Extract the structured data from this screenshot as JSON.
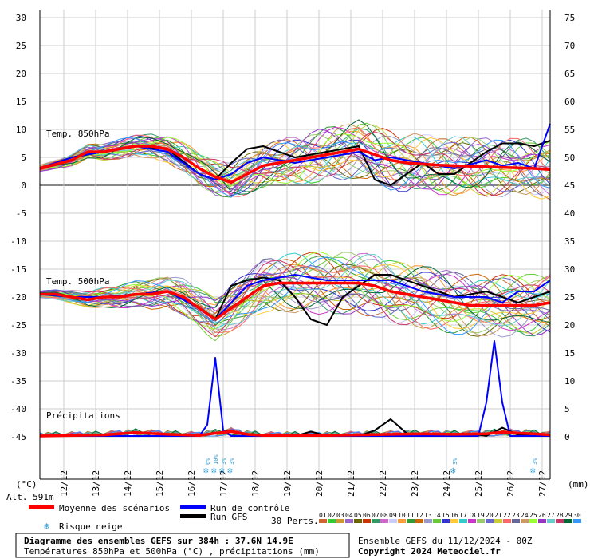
{
  "chart_data": {
    "type": "line",
    "title": "Diagramme des ensembles GEFS sur 384h : 37.6N 14.9E",
    "subtitle": "Températures 850hPa et 500hPa (°C) , précipitations (mm)",
    "run_info": "Ensemble GEFS du 11/12/2024 - 00Z",
    "copyright": "Copyright 2024 Meteociel.fr",
    "altitude_label": "Alt. 591m",
    "left_axis_unit": "(°C)",
    "right_axis_unit": "(mm)",
    "left_ticks": [
      "30",
      "25",
      "20",
      "15",
      "10",
      "5",
      "0",
      "-5",
      "-10",
      "-15",
      "-20",
      "-25",
      "-30",
      "-35",
      "-40",
      "-45"
    ],
    "right_ticks": [
      "75",
      "70",
      "65",
      "60",
      "55",
      "50",
      "45",
      "40",
      "35",
      "30",
      "25",
      "20",
      "15",
      "10",
      "5",
      "0"
    ],
    "date_labels": [
      "12/12",
      "13/12",
      "14/12",
      "15/12",
      "16/12",
      "17/12",
      "18/12",
      "19/12",
      "20/12",
      "21/12",
      "22/12",
      "23/12",
      "24/12",
      "25/12",
      "26/12",
      "27/12"
    ],
    "x_range_hours": [
      0,
      384
    ],
    "section_labels": {
      "t850": "Temp. 850hPa",
      "t500": "Temp. 500hPa",
      "precip": "Précipitations"
    },
    "legend": {
      "mean": "Moyenne des scénarios",
      "control": "Run de contrôle",
      "gfs": "Run GFS",
      "snow": "Risque neige",
      "perts": "30 Perts."
    },
    "colors": {
      "mean": "#ff0000",
      "control": "#0000ff",
      "gfs": "#000000",
      "snow": "#3399cc"
    },
    "member_labels": [
      "01",
      "02",
      "03",
      "04",
      "05",
      "06",
      "07",
      "08",
      "09",
      "10",
      "11",
      "12",
      "13",
      "14",
      "15",
      "16",
      "17",
      "18",
      "19",
      "20",
      "21",
      "22",
      "23",
      "24",
      "25",
      "26",
      "27",
      "28",
      "29",
      "30"
    ],
    "member_colors": [
      "#cc6633",
      "#33cc33",
      "#cc9933",
      "#9966cc",
      "#666600",
      "#cc3300",
      "#339966",
      "#cc66cc",
      "#ccccff",
      "#ff9933",
      "#339933",
      "#cc6600",
      "#9999cc",
      "#66cc33",
      "#3333cc",
      "#ffcc33",
      "#33cccc",
      "#cc33cc",
      "#99cc66",
      "#6666cc",
      "#cccc33",
      "#ff6666",
      "#666699",
      "#cc9966",
      "#99ff33",
      "#9933cc",
      "#66cccc",
      "#cc3366",
      "#006633",
      "#3399ff"
    ],
    "snow_marks": [
      {
        "hour": 126,
        "label": "6%"
      },
      {
        "hour": 132,
        "label": "10%"
      },
      {
        "hour": 138,
        "label": "3%"
      },
      {
        "hour": 144,
        "label": "3%"
      },
      {
        "hour": 312,
        "label": "3%"
      },
      {
        "hour": 372,
        "label": "3%"
      }
    ],
    "series": [
      {
        "name": "Moyenne des scénarios",
        "kind": "t850",
        "x": [
          0,
          24,
          36,
          48,
          60,
          72,
          84,
          96,
          108,
          120,
          132,
          144,
          156,
          168,
          180,
          192,
          204,
          216,
          228,
          240,
          252,
          264,
          276,
          288,
          300,
          312,
          324,
          336,
          348,
          360,
          372,
          384
        ],
        "y": [
          3,
          4.5,
          6,
          6,
          6.5,
          7,
          7,
          6.5,
          5,
          3,
          1.5,
          0.5,
          2,
          3.5,
          4,
          4.5,
          5,
          5.5,
          6,
          6.5,
          5.5,
          4.5,
          4,
          3.8,
          3.6,
          3.5,
          3.4,
          3.3,
          3.2,
          3.1,
          3,
          2.8
        ]
      },
      {
        "name": "Run de contrôle",
        "kind": "t850",
        "x": [
          0,
          24,
          48,
          72,
          96,
          120,
          132,
          144,
          156,
          168,
          192,
          216,
          240,
          252,
          264,
          288,
          312,
          336,
          348,
          360,
          372,
          384
        ],
        "y": [
          3,
          5,
          6,
          7,
          6,
          2,
          1,
          2,
          4,
          5,
          4,
          5,
          6,
          4.5,
          5,
          4,
          3,
          4.5,
          3.5,
          4,
          3,
          11
        ]
      },
      {
        "name": "Run GFS",
        "kind": "t850",
        "x": [
          0,
          24,
          48,
          72,
          96,
          120,
          132,
          144,
          156,
          168,
          192,
          216,
          240,
          252,
          264,
          288,
          300,
          312,
          336,
          348,
          360,
          372,
          384
        ],
        "y": [
          3,
          5,
          6,
          7,
          6.5,
          2,
          1,
          4,
          6.5,
          7,
          5,
          6,
          7,
          1,
          0,
          4,
          2,
          2,
          6,
          7.5,
          7.5,
          7,
          8
        ]
      },
      {
        "name": "Moyenne des scénarios",
        "kind": "t500",
        "x": [
          0,
          12,
          24,
          36,
          48,
          60,
          72,
          84,
          96,
          108,
          120,
          132,
          144,
          156,
          168,
          180,
          192,
          204,
          216,
          228,
          240,
          252,
          264,
          276,
          288,
          300,
          312,
          324,
          336,
          348,
          360,
          372,
          384
        ],
        "y": [
          -19.5,
          -19.5,
          -20,
          -20.5,
          -20,
          -20,
          -19.5,
          -19.5,
          -19,
          -20,
          -22,
          -24,
          -22,
          -20,
          -18,
          -17.5,
          -17.5,
          -17.5,
          -17.5,
          -17.5,
          -17.5,
          -18,
          -19,
          -19.5,
          -20,
          -20.5,
          -21,
          -21.5,
          -21.5,
          -21.5,
          -21.5,
          -21.5,
          -21
        ]
      },
      {
        "name": "Run de contrôle",
        "kind": "t500",
        "x": [
          0,
          24,
          48,
          72,
          96,
          120,
          132,
          144,
          156,
          168,
          192,
          216,
          240,
          264,
          288,
          312,
          336,
          348,
          360,
          372,
          384
        ],
        "y": [
          -19.5,
          -20,
          -20,
          -19.5,
          -19,
          -22,
          -24,
          -21,
          -18,
          -17,
          -16,
          -17,
          -17,
          -17,
          -19,
          -20,
          -20,
          -21,
          -19,
          -19,
          -17
        ]
      },
      {
        "name": "Run GFS",
        "kind": "t500",
        "x": [
          0,
          24,
          48,
          72,
          96,
          120,
          132,
          144,
          156,
          168,
          180,
          192,
          204,
          216,
          228,
          240,
          252,
          264,
          288,
          312,
          336,
          348,
          360,
          372,
          384
        ],
        "y": [
          -19.5,
          -20,
          -20,
          -19.5,
          -19,
          -22,
          -24,
          -18,
          -17,
          -16.5,
          -17,
          -20,
          -24,
          -25,
          -20,
          -18,
          -16,
          -16,
          -18,
          -20,
          -19,
          -20,
          -21,
          -20,
          -19
        ]
      },
      {
        "name": "Moyenne des scénarios",
        "kind": "precip",
        "x": [
          0,
          48,
          72,
          96,
          120,
          132,
          144,
          156,
          168,
          192,
          216,
          240,
          264,
          288,
          312,
          336,
          348,
          360,
          372,
          384
        ],
        "y": [
          0,
          0.2,
          0.6,
          0.3,
          0.1,
          0.5,
          0.8,
          0.3,
          0.1,
          0.1,
          0.1,
          0.2,
          0.3,
          0.4,
          0.3,
          0.4,
          0.7,
          0.5,
          0.4,
          0.2
        ]
      },
      {
        "name": "Run de contrôle",
        "kind": "precip",
        "x": [
          0,
          120,
          126,
          132,
          138,
          144,
          156,
          168,
          216,
          240,
          264,
          288,
          300,
          312,
          324,
          330,
          336,
          342,
          348,
          354,
          360,
          372,
          384
        ],
        "y": [
          0,
          0,
          2,
          14,
          1,
          0,
          0,
          0,
          0,
          0,
          0,
          0,
          0,
          0,
          0,
          0,
          6,
          17,
          6,
          0,
          0,
          0,
          0
        ]
      },
      {
        "name": "Run GFS",
        "kind": "precip",
        "x": [
          0,
          48,
          96,
          120,
          132,
          144,
          156,
          192,
          204,
          216,
          240,
          252,
          264,
          276,
          288,
          312,
          324,
          336,
          348,
          360,
          372,
          384
        ],
        "y": [
          0,
          0,
          0,
          0,
          0.5,
          1,
          0,
          0,
          0.8,
          0,
          0,
          1,
          3,
          0.5,
          0,
          0,
          0.5,
          0,
          1.5,
          0.2,
          0,
          0
        ]
      }
    ]
  }
}
